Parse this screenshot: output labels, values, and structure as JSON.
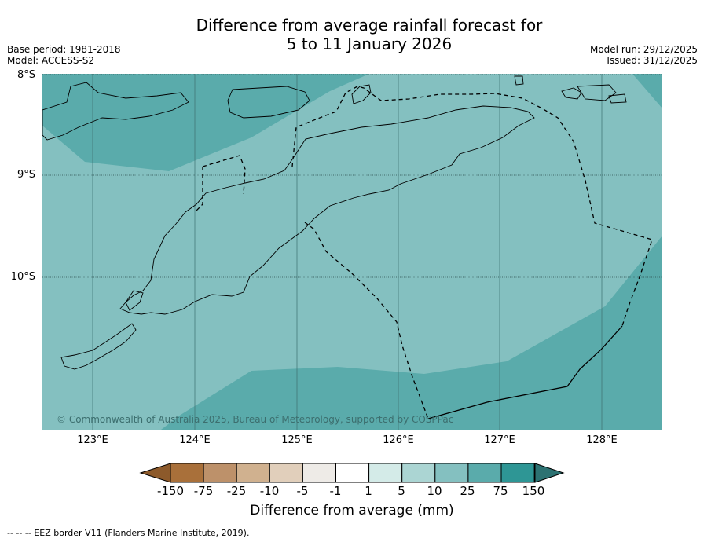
{
  "header": {
    "title_line1": "Difference from average rainfall forecast for",
    "title_line2": "5 to 11 January 2026",
    "base_period": "Base period: 1981-2018",
    "model": "Model: ACCESS-S2",
    "model_run": "Model run: 29/12/2025",
    "issued": "Issued: 31/12/2025"
  },
  "map": {
    "lat_labels": [
      "8°S",
      "9°S",
      "10°S"
    ],
    "lon_labels": [
      "123°E",
      "124°E",
      "125°E",
      "126°E",
      "127°E",
      "128°E"
    ],
    "credit": "© Commonwealth of Australia 2025, Bureau of Meteorology, supported by COSPPac",
    "zones": [
      {
        "name": "25 to 75 mm",
        "color": "#5aabab"
      },
      {
        "name": "10 to 25 mm",
        "color": "#84c0c0"
      }
    ]
  },
  "colorbar": {
    "title": "Difference from average (mm)",
    "labels": [
      "-150",
      "-75",
      "-25",
      "-10",
      "-5",
      "-1",
      "1",
      "5",
      "10",
      "25",
      "75",
      "150"
    ],
    "colors": [
      "#a9703a",
      "#bd916a",
      "#d0b18f",
      "#e1cfbb",
      "#eeebe7",
      "#ffffff",
      "#d4ebe8",
      "#abd5d3",
      "#84c0c0",
      "#5aabab",
      "#2e9695"
    ],
    "under_color": "#8d5a2b",
    "over_color": "#2c7272"
  },
  "footnote": "--  --  -- EEZ border V11 (Flanders Marine Institute, 2019)."
}
